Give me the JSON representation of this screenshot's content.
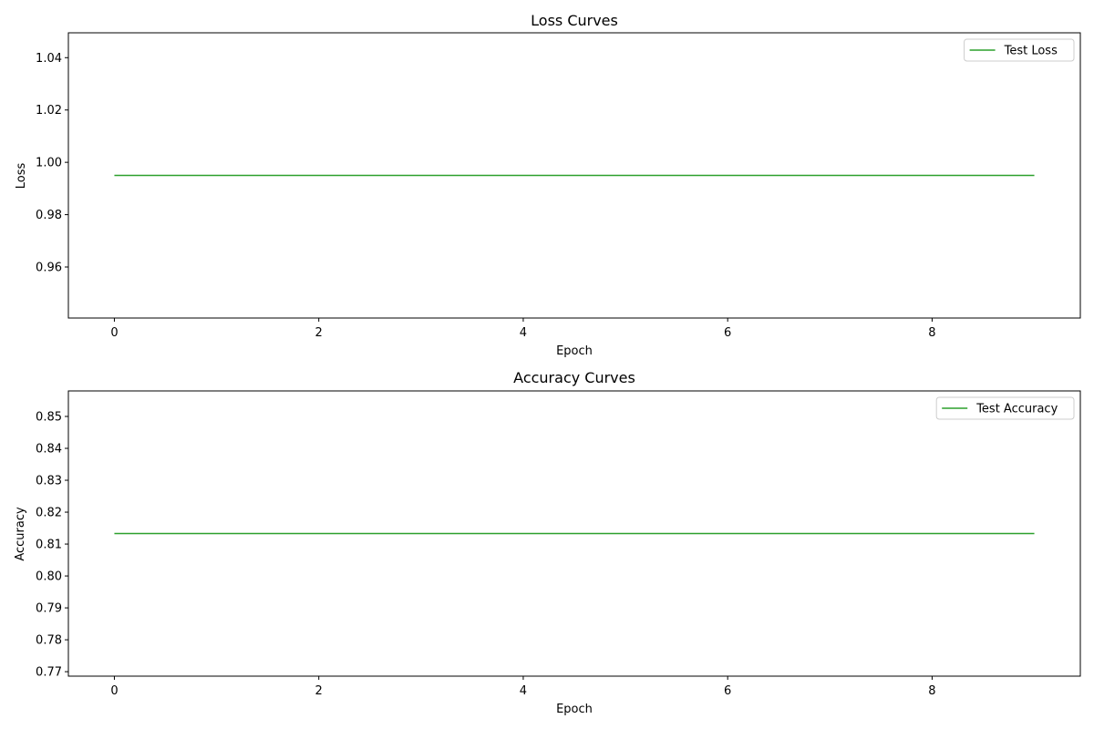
{
  "chart_data": [
    {
      "type": "line",
      "title": "Loss Curves",
      "xlabel": "Epoch",
      "ylabel": "Loss",
      "x": [
        0,
        1,
        2,
        3,
        4,
        5,
        6,
        7,
        8,
        9
      ],
      "series": [
        {
          "name": "Test Loss",
          "color": "#2ca02c",
          "values": [
            0.995,
            0.995,
            0.995,
            0.995,
            0.995,
            0.995,
            0.995,
            0.995,
            0.995,
            0.995
          ]
        }
      ],
      "xlim": [
        -0.45,
        9.45
      ],
      "ylim": [
        0.9405,
        1.0495
      ],
      "xticks": [
        0,
        2,
        4,
        6,
        8
      ],
      "xtick_labels": [
        "0",
        "2",
        "4",
        "6",
        "8"
      ],
      "yticks": [
        0.96,
        0.98,
        1.0,
        1.02,
        1.04
      ],
      "ytick_labels": [
        "0.96",
        "0.98",
        "1.00",
        "1.02",
        "1.04"
      ],
      "grid": false,
      "legend": "top-right"
    },
    {
      "type": "line",
      "title": "Accuracy Curves",
      "xlabel": "Epoch",
      "ylabel": "Accuracy",
      "x": [
        0,
        1,
        2,
        3,
        4,
        5,
        6,
        7,
        8,
        9
      ],
      "series": [
        {
          "name": "Test Accuracy",
          "color": "#2ca02c",
          "values": [
            0.8133,
            0.8133,
            0.8133,
            0.8133,
            0.8133,
            0.8133,
            0.8133,
            0.8133,
            0.8133,
            0.8133
          ]
        }
      ],
      "xlim": [
        -0.45,
        9.45
      ],
      "ylim": [
        0.7686,
        0.858
      ],
      "xticks": [
        0,
        2,
        4,
        6,
        8
      ],
      "xtick_labels": [
        "0",
        "2",
        "4",
        "6",
        "8"
      ],
      "yticks": [
        0.77,
        0.78,
        0.79,
        0.8,
        0.81,
        0.82,
        0.83,
        0.84,
        0.85
      ],
      "ytick_labels": [
        "0.77",
        "0.78",
        "0.79",
        "0.80",
        "0.81",
        "0.82",
        "0.83",
        "0.84",
        "0.85"
      ],
      "grid": false,
      "legend": "top-right"
    }
  ]
}
